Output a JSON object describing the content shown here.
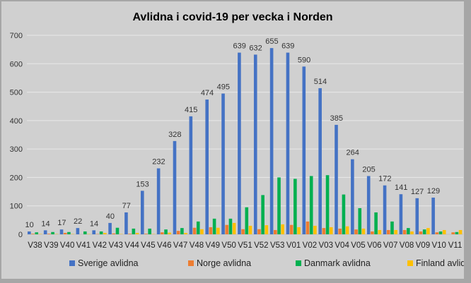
{
  "chart_data": {
    "type": "bar",
    "title": "Avlidna i covid-19 per vecka i Norden",
    "xlabel": "",
    "ylabel": "",
    "ylim": [
      0,
      700
    ],
    "yticks": [
      0,
      100,
      200,
      300,
      400,
      500,
      600,
      700
    ],
    "grid": true,
    "legend": "bottom",
    "categories": [
      "V38",
      "V39",
      "V40",
      "V41",
      "V42",
      "V43",
      "V44",
      "V45",
      "V46",
      "V47",
      "V48",
      "V49",
      "V50",
      "V51",
      "V52",
      "V53",
      "V01",
      "V02",
      "V03",
      "V04",
      "V05",
      "V06",
      "V07",
      "V08",
      "V09",
      "V10",
      "V11"
    ],
    "series": [
      {
        "name": "Sverige avlidna",
        "color": "#4472c4",
        "labels": true,
        "values": [
          10,
          14,
          17,
          22,
          14,
          40,
          77,
          153,
          232,
          328,
          415,
          474,
          495,
          639,
          632,
          655,
          639,
          590,
          514,
          385,
          264,
          205,
          172,
          141,
          127,
          129,
          null
        ]
      },
      {
        "name": "Norge avlidna",
        "color": "#ed7d31",
        "values": [
          2,
          2,
          5,
          0,
          1,
          3,
          2,
          2,
          7,
          12,
          23,
          25,
          33,
          18,
          18,
          15,
          33,
          45,
          22,
          20,
          17,
          10,
          15,
          15,
          10,
          7,
          7
        ]
      },
      {
        "name": "Danmark avlidna",
        "color": "#00b050",
        "values": [
          7,
          8,
          8,
          10,
          10,
          23,
          20,
          20,
          17,
          22,
          45,
          55,
          55,
          95,
          138,
          200,
          195,
          205,
          208,
          140,
          92,
          77,
          45,
          22,
          17,
          10,
          8
        ]
      },
      {
        "name": "Finland avlidna",
        "color": "#ffc000",
        "values": [
          1,
          1,
          1,
          1,
          5,
          1,
          5,
          1,
          6,
          5,
          18,
          23,
          40,
          30,
          32,
          35,
          25,
          30,
          25,
          28,
          20,
          15,
          15,
          10,
          22,
          15,
          15
        ]
      }
    ]
  }
}
